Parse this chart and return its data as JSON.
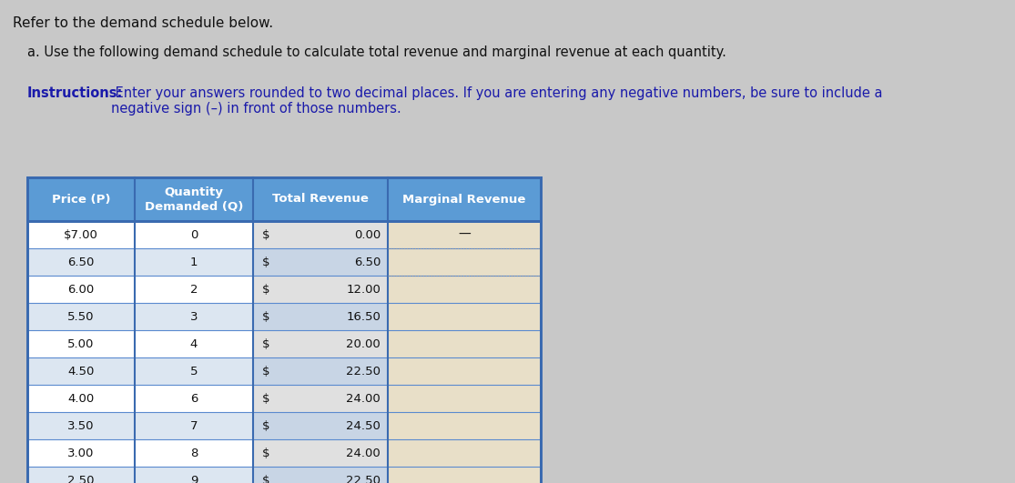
{
  "title_line1": "Refer to the demand schedule below.",
  "title_line2": "a. Use the following demand schedule to calculate total revenue and marginal revenue at each quantity.",
  "instructions_bold": "Instructions:",
  "instructions_rest": " Enter your answers rounded to two decimal places. If you are entering any negative numbers, be sure to include a\nnegative sign (–) in front of those numbers.",
  "col_headers": [
    "Price (P)",
    "Quantity\nDemanded (Q)",
    "Total Revenue",
    "Marginal Revenue"
  ],
  "prices": [
    "$7.00",
    "6.50",
    "6.00",
    "5.50",
    "5.00",
    "4.50",
    "4.00",
    "3.50",
    "3.00",
    "2.50"
  ],
  "quantities": [
    "0",
    "1",
    "2",
    "3",
    "4",
    "5",
    "6",
    "7",
    "8",
    "9"
  ],
  "total_revenue_values": [
    "0.00",
    "6.50",
    "12.00",
    "16.50",
    "20.00",
    "22.50",
    "24.00",
    "24.50",
    "24.00",
    "22.50"
  ],
  "marginal_revenue_first": "—",
  "header_bg": "#5b9bd5",
  "header_text_color": "#ffffff",
  "row_bg_light": "#dce6f1",
  "row_bg_white": "#ffffff",
  "mr_cell_bg": "#e8dfc8",
  "tr_cell_bg_even": "#d8d8d8",
  "tr_cell_bg_odd": "#c8d8e8",
  "border_color": "#3a6ab0",
  "inner_border_color": "#5a8acf",
  "text_color": "#111111",
  "blue_text_color": "#1a1aaa",
  "page_bg": "#c8c8c8"
}
